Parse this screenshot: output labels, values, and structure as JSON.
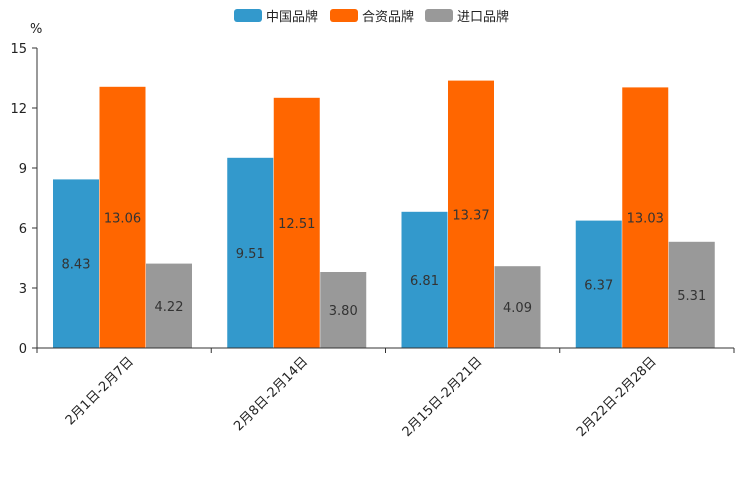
{
  "chart_data": {
    "type": "bar",
    "title": "",
    "unit_label": "%",
    "xlabel": "",
    "ylabel": "%",
    "ylim": [
      0,
      15
    ],
    "yticks": [
      "0",
      "3",
      "6",
      "9",
      "12",
      "15"
    ],
    "grid": false,
    "legend_position": "top-center",
    "categories": [
      "2月1日-2月7日",
      "2月8日-2月14日",
      "2月15日-2月21日",
      "2月22日-2月28日"
    ],
    "series": [
      {
        "name": "中国品牌",
        "color": "#3399cc",
        "values": [
          8.43,
          9.51,
          6.81,
          6.37
        ],
        "labels": [
          "8.43",
          "9.51",
          "6.81",
          "6.37"
        ]
      },
      {
        "name": "合资品牌",
        "color": "#ff6600",
        "values": [
          13.06,
          12.51,
          13.37,
          13.03
        ],
        "labels": [
          "13.06",
          "12.51",
          "13.37",
          "13.03"
        ]
      },
      {
        "name": "进口品牌",
        "color": "#999999",
        "values": [
          4.22,
          3.8,
          4.09,
          5.31
        ],
        "labels": [
          "4.22",
          "3.80",
          "4.09",
          "5.31"
        ]
      }
    ]
  }
}
